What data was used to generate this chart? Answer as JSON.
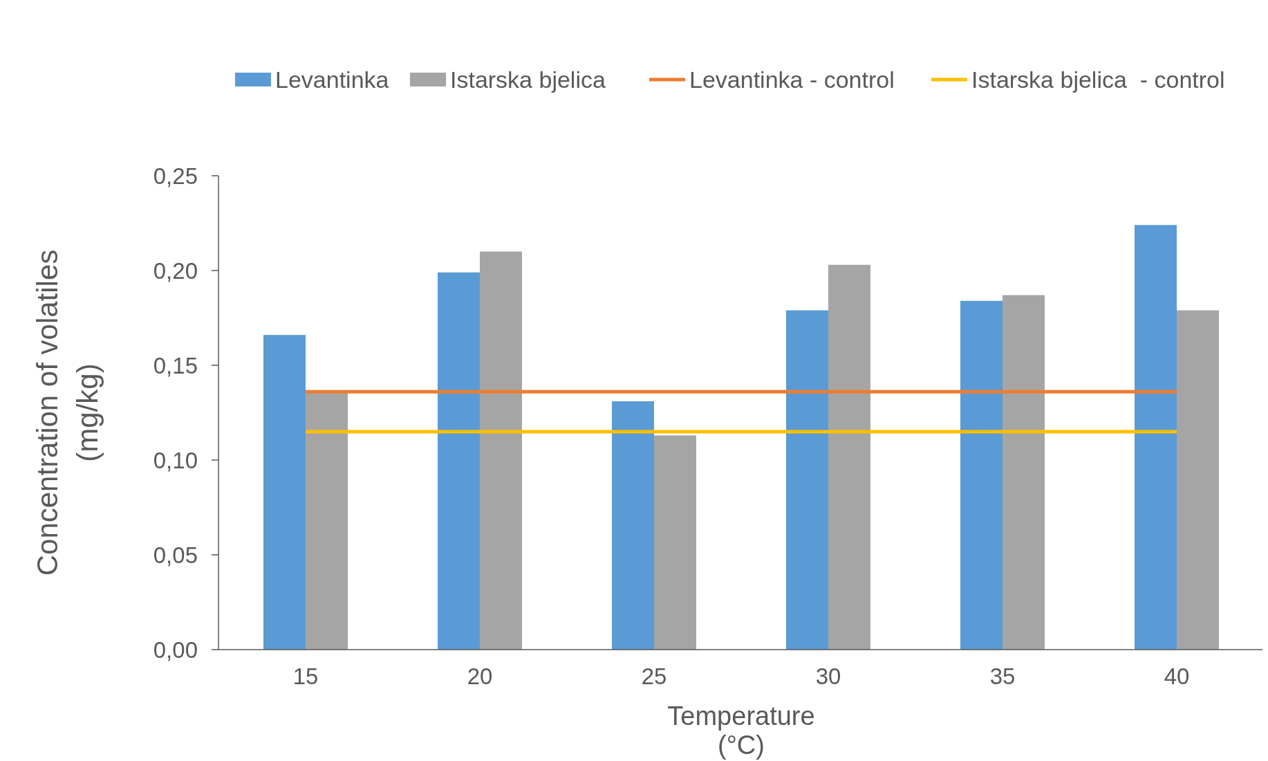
{
  "chart_data": {
    "type": "bar",
    "xlabel": "Temperature\n(°C)",
    "ylabel": "Concentration of volatiles\n(mg/kg)",
    "categories": [
      "15",
      "20",
      "25",
      "30",
      "35",
      "40"
    ],
    "series": [
      {
        "name": "Levantinka",
        "color": "#5b9bd5",
        "values": [
          0.166,
          0.199,
          0.131,
          0.179,
          0.184,
          0.224
        ]
      },
      {
        "name": "Istarska bjelica",
        "color": "#a5a5a5",
        "values": [
          0.136,
          0.21,
          0.113,
          0.203,
          0.187,
          0.179
        ]
      },
      {
        "name": "Levantinka - control",
        "type": "line",
        "color": "#ed7d31",
        "values": [
          0.136,
          0.136,
          0.136,
          0.136,
          0.136,
          0.136
        ]
      },
      {
        "name": "Istarska bjelica  - control",
        "type": "line",
        "color": "#ffc000",
        "values": [
          0.115,
          0.115,
          0.115,
          0.115,
          0.115,
          0.115
        ]
      }
    ],
    "ylim": [
      0,
      0.25
    ],
    "yticks": [
      {
        "value": 0,
        "label": "0,00"
      },
      {
        "value": 0.05,
        "label": "0,05"
      },
      {
        "value": 0.1,
        "label": "0,10"
      },
      {
        "value": 0.15,
        "label": "0,15"
      },
      {
        "value": 0.2,
        "label": "0,20"
      },
      {
        "value": 0.25,
        "label": "0,25"
      }
    ],
    "grid": false,
    "legend": "top"
  }
}
